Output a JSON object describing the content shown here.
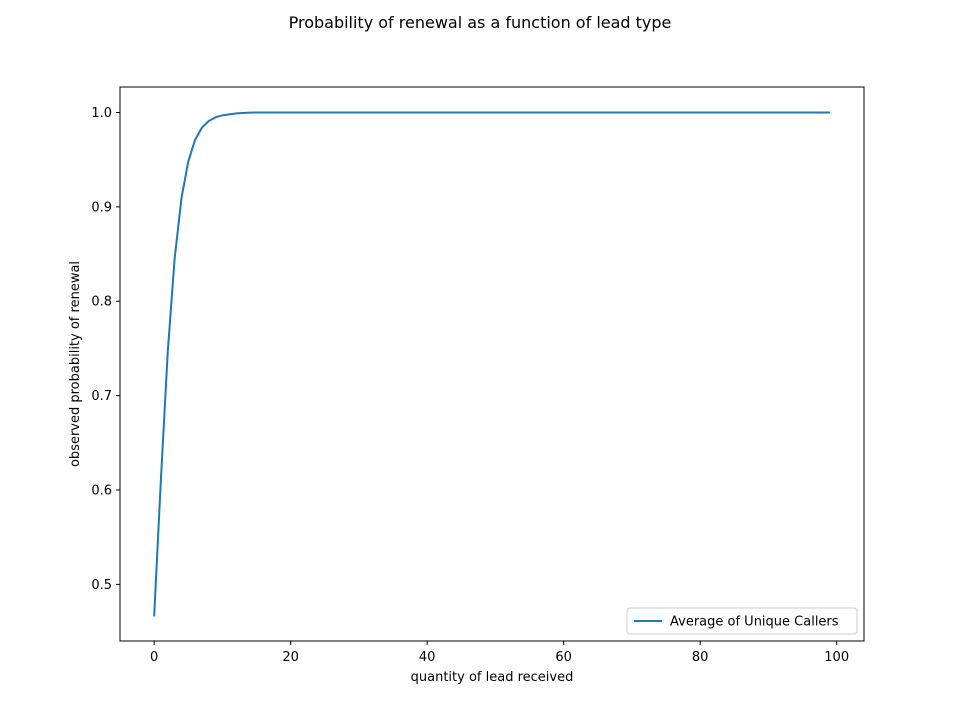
{
  "chart_data": {
    "type": "line",
    "title": "Probability of renewal as a function of lead type",
    "xlabel": "quantity of lead received",
    "ylabel": "observed probability of renewal",
    "xlim": [
      -5,
      104
    ],
    "ylim": [
      0.44,
      1.027
    ],
    "x_ticks": [
      0,
      20,
      40,
      60,
      80,
      100
    ],
    "x_tick_labels": [
      "0",
      "20",
      "40",
      "60",
      "80",
      "100"
    ],
    "y_ticks": [
      0.5,
      0.6,
      0.7,
      0.8,
      0.9,
      1.0
    ],
    "y_tick_labels": [
      "0.5",
      "0.6",
      "0.7",
      "0.8",
      "0.9",
      "1.0"
    ],
    "grid": false,
    "legend_position": "lower-right",
    "series": [
      {
        "name": "Average of Unique Callers",
        "color": "#1f77b4",
        "x": [
          0,
          1,
          2,
          3,
          4,
          5,
          6,
          7,
          8,
          9,
          10,
          11,
          12,
          13,
          14,
          15,
          20,
          30,
          40,
          50,
          60,
          70,
          80,
          90,
          99
        ],
        "y": [
          0.466,
          0.612,
          0.747,
          0.845,
          0.909,
          0.948,
          0.971,
          0.984,
          0.991,
          0.995,
          0.997,
          0.998,
          0.999,
          0.9995,
          0.9998,
          1.0,
          1.0,
          1.0,
          1.0,
          1.0,
          1.0,
          1.0,
          1.0,
          1.0,
          1.0
        ]
      }
    ]
  }
}
